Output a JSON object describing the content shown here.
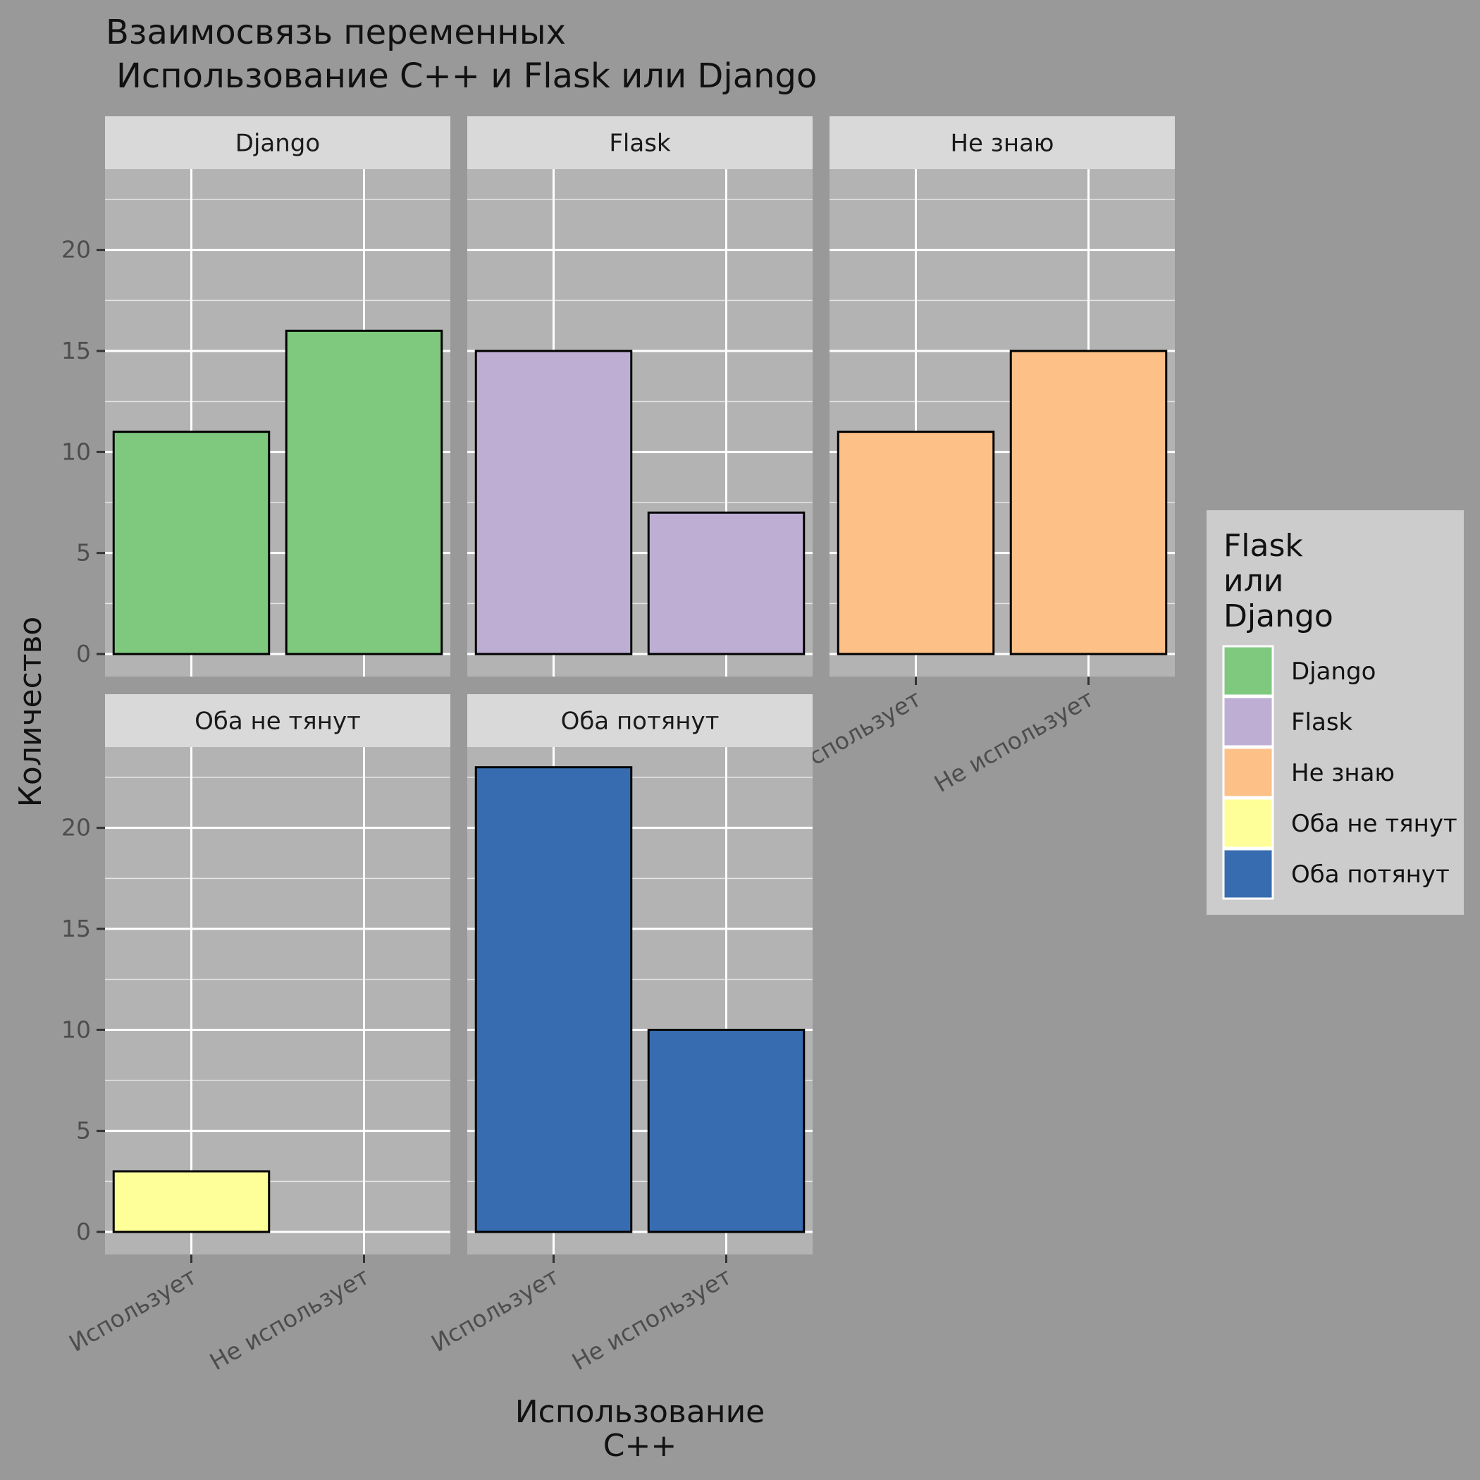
{
  "chart_data": {
    "type": "bar",
    "title": "Взаимосвязь переменных",
    "subtitle": "Использование C++ и Flask или Django",
    "xlabel": [
      "Использование",
      "C++"
    ],
    "ylabel": "Количество",
    "categories": [
      "Использует",
      "Не использует"
    ],
    "yticks": [
      0,
      5,
      10,
      15,
      20
    ],
    "ylim": [
      0,
      24
    ],
    "grid": true,
    "legend": {
      "title": [
        "Flask",
        "или",
        "Django"
      ],
      "placement": "right",
      "entries": [
        "Django",
        "Flask",
        "Не знаю",
        "Оба не тянут",
        "Оба потянут"
      ]
    },
    "colors": {
      "Django": "#7fc97f",
      "Flask": "#beaed4",
      "Не знаю": "#fdc086",
      "Оба не тянут": "#ffff99",
      "Оба потянут": "#386cb0"
    },
    "series": [
      {
        "name": "Django",
        "values": [
          11,
          16
        ]
      },
      {
        "name": "Flask",
        "values": [
          15,
          7
        ]
      },
      {
        "name": "Не знаю",
        "values": [
          11,
          15
        ]
      },
      {
        "name": "Оба не тянут",
        "values": [
          3,
          0
        ]
      },
      {
        "name": "Оба потянут",
        "values": [
          23,
          10
        ]
      }
    ]
  }
}
